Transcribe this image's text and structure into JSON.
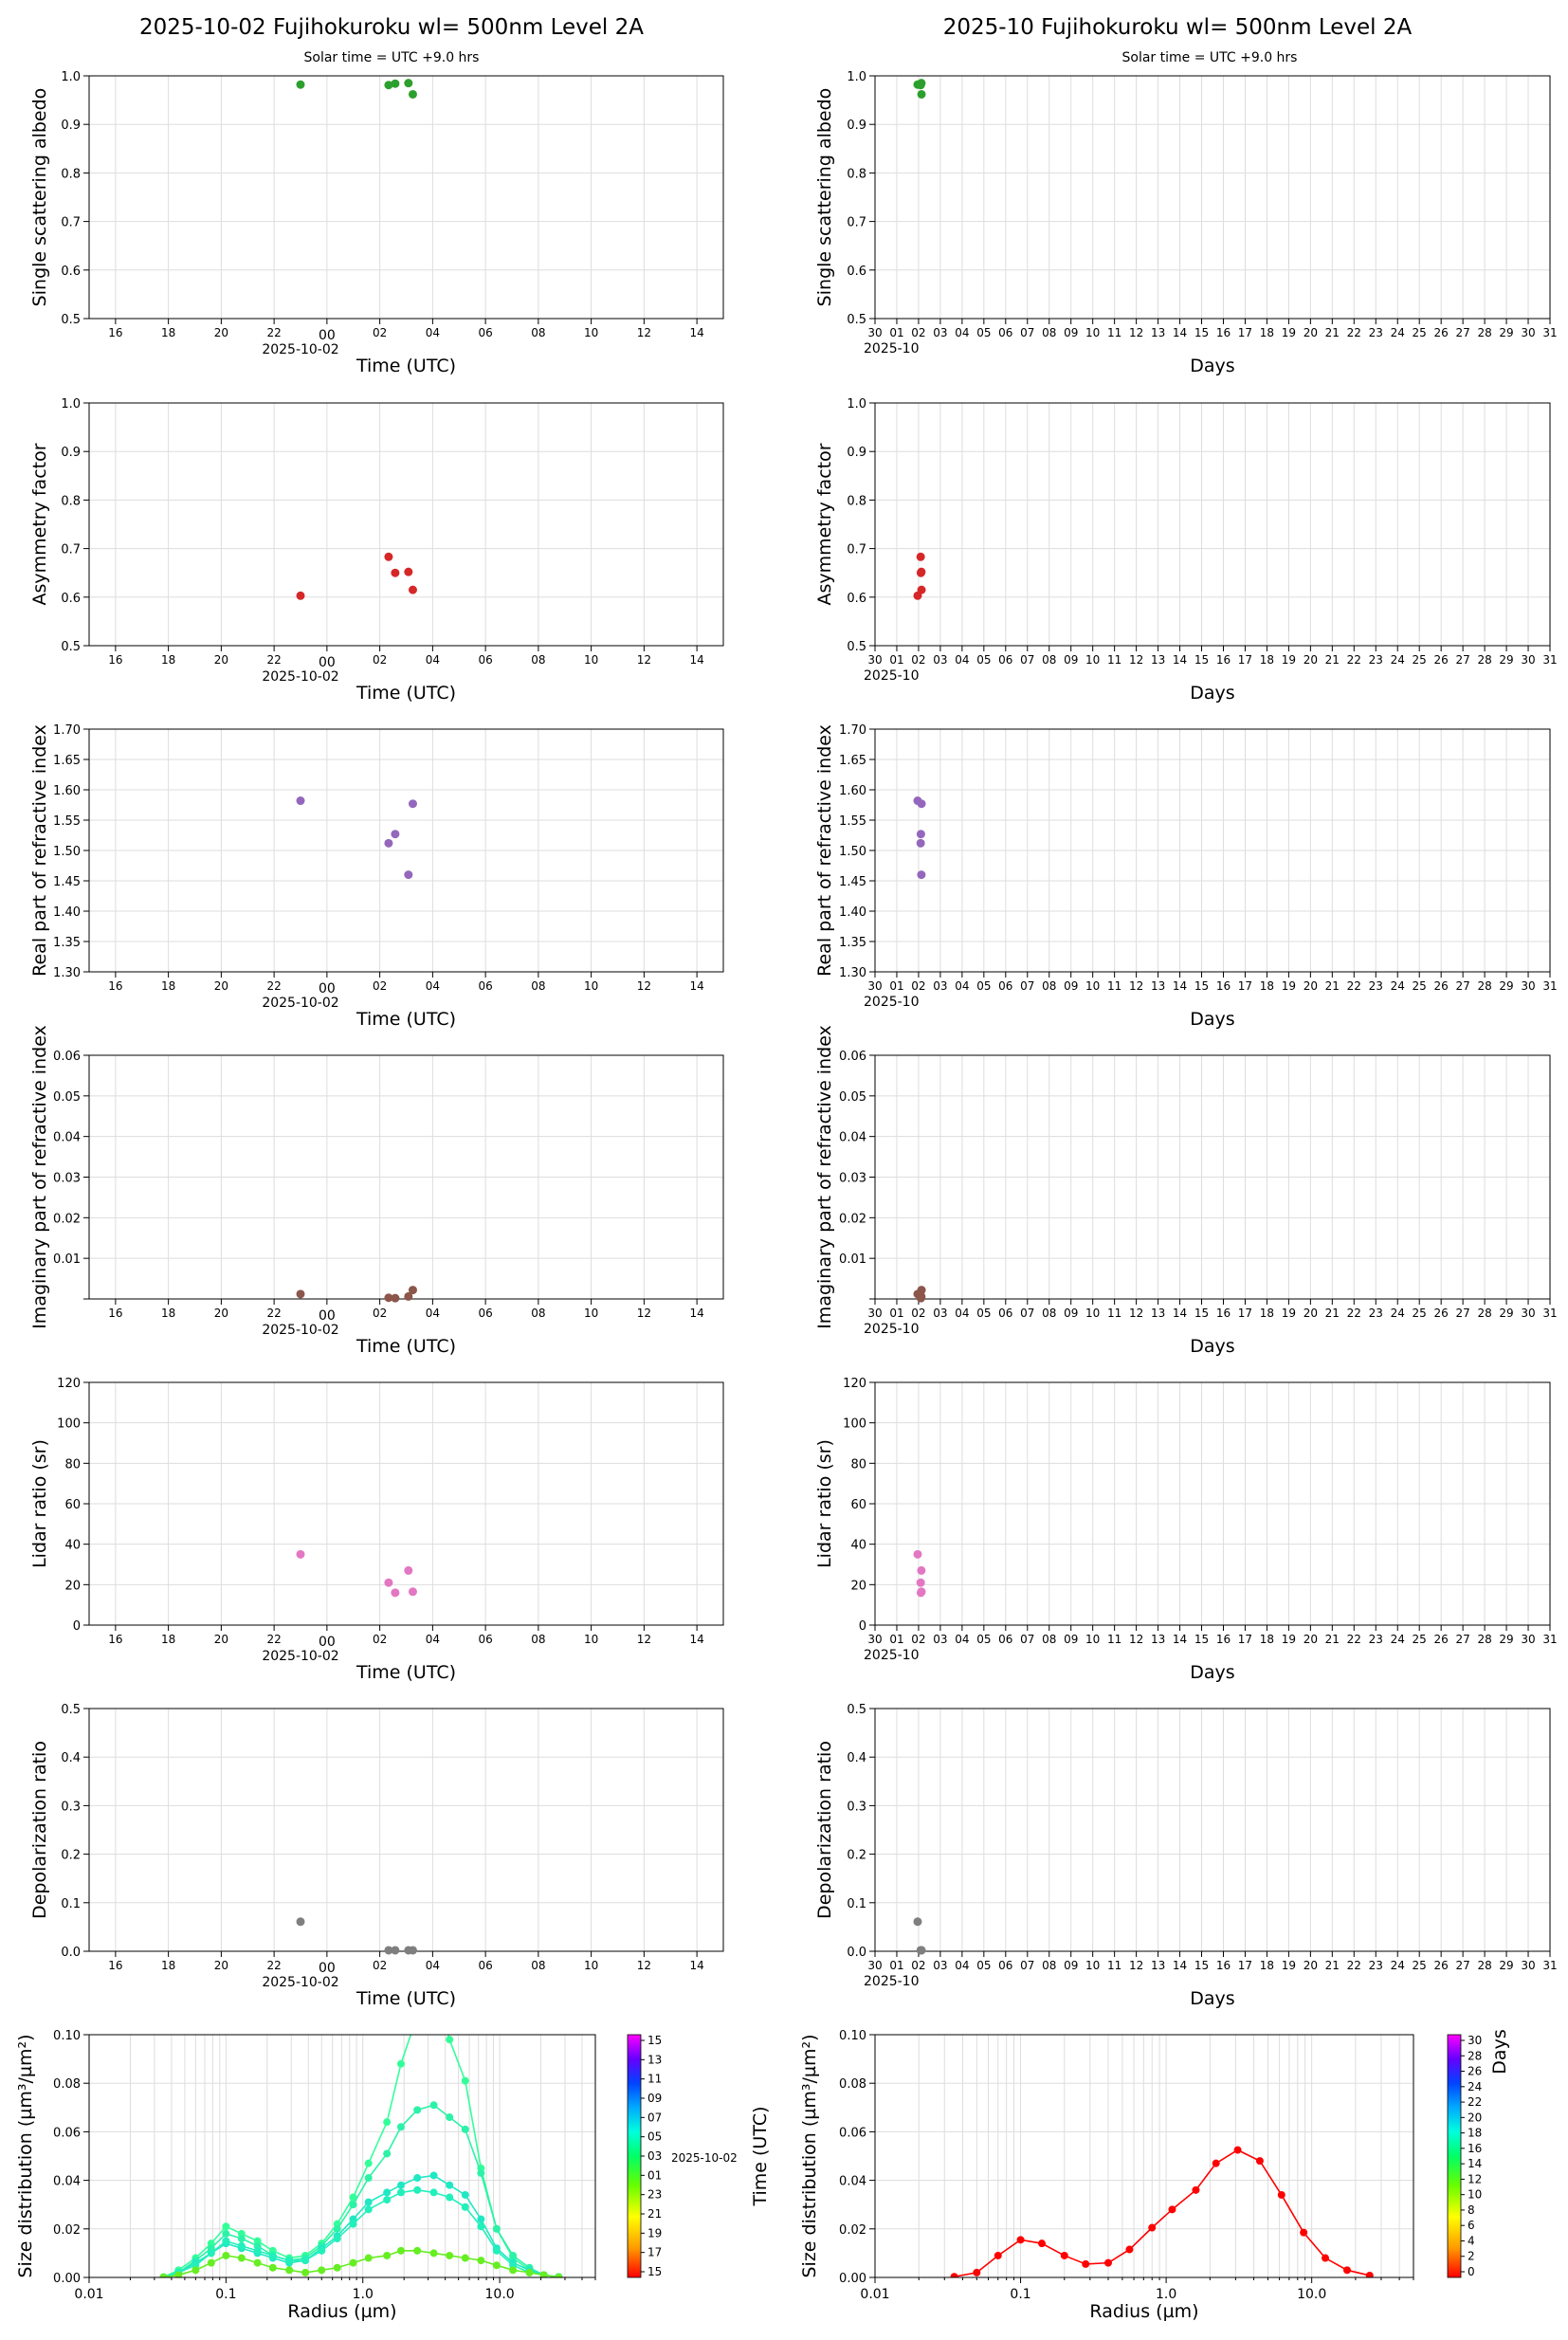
{
  "columns": [
    {
      "title": "2025-10-02  Fujihokuroku  wl= 500nm  Level 2A",
      "subtitle": "Solar time = UTC +9.0 hrs"
    },
    {
      "title": "2025-10  Fujihokuroku  wl= 500nm  Level 2A",
      "subtitle": "Solar time = UTC +9.0 hrs"
    }
  ],
  "axis_text": {
    "time_xlabel": "Time (UTC)",
    "days_xlabel": "Days",
    "time_date_label": "2025-10-02",
    "days_date_label": "2025-10",
    "time_ticks": [
      "16",
      "18",
      "20",
      "22",
      "00",
      "02",
      "04",
      "06",
      "08",
      "10",
      "12",
      "14"
    ],
    "day_ticks": [
      "30",
      "01",
      "02",
      "03",
      "04",
      "05",
      "06",
      "07",
      "08",
      "09",
      "10",
      "11",
      "12",
      "13",
      "14",
      "15",
      "16",
      "17",
      "18",
      "19",
      "20",
      "21",
      "22",
      "23",
      "24",
      "25",
      "26",
      "27",
      "28",
      "29",
      "30",
      "31"
    ],
    "radius_xlabel": "Radius (µm)",
    "radius_ticks": [
      "0.01",
      "0.1",
      "1.0",
      "10.0"
    ],
    "size_ylabel": "Size distribution (µm³/µm²)",
    "left_cbar_label": "Time (UTC)",
    "left_cbar_ticks": [
      "15",
      "13",
      "11",
      "09",
      "07",
      "05",
      "03",
      "01",
      "23",
      "21",
      "19",
      "17",
      "15"
    ],
    "left_cbar_date": "2025-10-02",
    "right_cbar_label": "Days",
    "right_cbar_ticks": [
      "30",
      "28",
      "26",
      "24",
      "22",
      "20",
      "18",
      "16",
      "14",
      "12",
      "10",
      "8",
      "6",
      "4",
      "2",
      "0"
    ]
  },
  "chart_data": [
    {
      "type": "scatter",
      "panel": "time",
      "ylabel": "Single scattering albedo",
      "ylim": [
        0.5,
        1.0
      ],
      "yticks": [
        "0.5",
        "0.6",
        "0.7",
        "0.8",
        "0.9",
        "1.0"
      ],
      "color": "#2ca02c",
      "grid": true,
      "points": [
        {
          "t": "2025-10-01T23:00",
          "y": 0.982
        },
        {
          "t": "2025-10-02T02:20",
          "y": 0.981
        },
        {
          "t": "2025-10-02T02:35",
          "y": 0.984
        },
        {
          "t": "2025-10-02T03:05",
          "y": 0.985
        },
        {
          "t": "2025-10-02T03:15",
          "y": 0.962
        }
      ]
    },
    {
      "type": "scatter",
      "panel": "days",
      "ylabel": "Single scattering albedo",
      "ylim": [
        0.5,
        1.0
      ],
      "yticks": [
        "0.5",
        "0.6",
        "0.7",
        "0.8",
        "0.9",
        "1.0"
      ],
      "color": "#2ca02c",
      "grid": true,
      "points": [
        {
          "d": "2025-10-01T23:00",
          "y": 0.982
        },
        {
          "d": "2025-10-02T02:20",
          "y": 0.981
        },
        {
          "d": "2025-10-02T02:35",
          "y": 0.984
        },
        {
          "d": "2025-10-02T03:05",
          "y": 0.985
        },
        {
          "d": "2025-10-02T03:15",
          "y": 0.962
        }
      ]
    },
    {
      "type": "scatter",
      "panel": "time",
      "ylabel": "Asymmetry factor",
      "ylim": [
        0.5,
        1.0
      ],
      "yticks": [
        "0.5",
        "0.6",
        "0.7",
        "0.8",
        "0.9",
        "1.0"
      ],
      "color": "#d62728",
      "grid": true,
      "points": [
        {
          "t": "2025-10-01T23:00",
          "y": 0.603
        },
        {
          "t": "2025-10-02T02:20",
          "y": 0.683
        },
        {
          "t": "2025-10-02T02:35",
          "y": 0.65
        },
        {
          "t": "2025-10-02T03:05",
          "y": 0.652
        },
        {
          "t": "2025-10-02T03:15",
          "y": 0.615
        }
      ]
    },
    {
      "type": "scatter",
      "panel": "days",
      "ylabel": "Asymmetry factor",
      "ylim": [
        0.5,
        1.0
      ],
      "yticks": [
        "0.5",
        "0.6",
        "0.7",
        "0.8",
        "0.9",
        "1.0"
      ],
      "color": "#d62728",
      "grid": true,
      "points": [
        {
          "d": "2025-10-01T23:00",
          "y": 0.603
        },
        {
          "d": "2025-10-02T02:20",
          "y": 0.683
        },
        {
          "d": "2025-10-02T02:35",
          "y": 0.65
        },
        {
          "d": "2025-10-02T03:05",
          "y": 0.652
        },
        {
          "d": "2025-10-02T03:15",
          "y": 0.615
        }
      ]
    },
    {
      "type": "scatter",
      "panel": "time",
      "ylabel": "Real part of refractive index",
      "ylim": [
        1.3,
        1.7
      ],
      "yticks": [
        "1.30",
        "1.35",
        "1.40",
        "1.45",
        "1.50",
        "1.55",
        "1.60",
        "1.65",
        "1.70"
      ],
      "color": "#9467bd",
      "grid": true,
      "points": [
        {
          "t": "2025-10-01T23:00",
          "y": 1.582
        },
        {
          "t": "2025-10-02T02:20",
          "y": 1.512
        },
        {
          "t": "2025-10-02T02:35",
          "y": 1.527
        },
        {
          "t": "2025-10-02T03:05",
          "y": 1.46
        },
        {
          "t": "2025-10-02T03:15",
          "y": 1.577
        }
      ]
    },
    {
      "type": "scatter",
      "panel": "days",
      "ylabel": "Real part of refractive index",
      "ylim": [
        1.3,
        1.7
      ],
      "yticks": [
        "1.30",
        "1.35",
        "1.40",
        "1.45",
        "1.50",
        "1.55",
        "1.60",
        "1.65",
        "1.70"
      ],
      "color": "#9467bd",
      "grid": true,
      "points": [
        {
          "d": "2025-10-01T23:00",
          "y": 1.582
        },
        {
          "d": "2025-10-02T02:20",
          "y": 1.512
        },
        {
          "d": "2025-10-02T02:35",
          "y": 1.527
        },
        {
          "d": "2025-10-02T03:05",
          "y": 1.46
        },
        {
          "d": "2025-10-02T03:15",
          "y": 1.577
        }
      ]
    },
    {
      "type": "scatter",
      "panel": "time",
      "ylabel": "Imaginary part of refractive index",
      "ylim": [
        0.0,
        0.06
      ],
      "yticks": [
        "",
        "0.01",
        "0.02",
        "0.03",
        "0.04",
        "0.05",
        "0.06"
      ],
      "color": "#8c564b",
      "grid": true,
      "points": [
        {
          "t": "2025-10-01T23:00",
          "y": 0.0012
        },
        {
          "t": "2025-10-02T02:20",
          "y": 0.0003
        },
        {
          "t": "2025-10-02T02:35",
          "y": 0.0002
        },
        {
          "t": "2025-10-02T03:05",
          "y": 0.0006
        },
        {
          "t": "2025-10-02T03:15",
          "y": 0.0022
        }
      ]
    },
    {
      "type": "scatter",
      "panel": "days",
      "ylabel": "Imaginary part of refractive index",
      "ylim": [
        0.0,
        0.06
      ],
      "yticks": [
        "",
        "0.01",
        "0.02",
        "0.03",
        "0.04",
        "0.05",
        "0.06"
      ],
      "color": "#8c564b",
      "grid": true,
      "points": [
        {
          "d": "2025-10-01T23:00",
          "y": 0.0012
        },
        {
          "d": "2025-10-02T02:20",
          "y": 0.0003
        },
        {
          "d": "2025-10-02T02:35",
          "y": 0.0002
        },
        {
          "d": "2025-10-02T03:05",
          "y": 0.0006
        },
        {
          "d": "2025-10-02T03:15",
          "y": 0.0022
        }
      ]
    },
    {
      "type": "scatter",
      "panel": "time",
      "ylabel": "Lidar ratio (sr)",
      "ylim": [
        0,
        120
      ],
      "yticks": [
        "0",
        "20",
        "40",
        "60",
        "80",
        "100",
        "120"
      ],
      "color": "#e377c2",
      "grid": true,
      "points": [
        {
          "t": "2025-10-01T23:00",
          "y": 35
        },
        {
          "t": "2025-10-02T02:20",
          "y": 21
        },
        {
          "t": "2025-10-02T02:35",
          "y": 16
        },
        {
          "t": "2025-10-02T03:05",
          "y": 27
        },
        {
          "t": "2025-10-02T03:15",
          "y": 16.5
        }
      ]
    },
    {
      "type": "scatter",
      "panel": "days",
      "ylabel": "Lidar ratio (sr)",
      "ylim": [
        0,
        120
      ],
      "yticks": [
        "0",
        "20",
        "40",
        "60",
        "80",
        "100",
        "120"
      ],
      "color": "#e377c2",
      "grid": true,
      "points": [
        {
          "d": "2025-10-01T23:00",
          "y": 35
        },
        {
          "d": "2025-10-02T02:20",
          "y": 21
        },
        {
          "d": "2025-10-02T02:35",
          "y": 16
        },
        {
          "d": "2025-10-02T03:05",
          "y": 27
        },
        {
          "d": "2025-10-02T03:15",
          "y": 16.5
        }
      ]
    },
    {
      "type": "scatter",
      "panel": "time",
      "ylabel": "Depolarization ratio",
      "ylim": [
        0.0,
        0.5
      ],
      "yticks": [
        "0.0",
        "0.1",
        "0.2",
        "0.3",
        "0.4",
        "0.5"
      ],
      "color": "#7f7f7f",
      "grid": true,
      "points": [
        {
          "t": "2025-10-01T23:00",
          "y": 0.061
        },
        {
          "t": "2025-10-02T02:20",
          "y": 0.002
        },
        {
          "t": "2025-10-02T02:35",
          "y": 0.002
        },
        {
          "t": "2025-10-02T03:05",
          "y": 0.002
        },
        {
          "t": "2025-10-02T03:15",
          "y": 0.002
        }
      ]
    },
    {
      "type": "scatter",
      "panel": "days",
      "ylabel": "Depolarization ratio",
      "ylim": [
        0.0,
        0.5
      ],
      "yticks": [
        "0.0",
        "0.1",
        "0.2",
        "0.3",
        "0.4",
        "0.5"
      ],
      "color": "#7f7f7f",
      "grid": true,
      "points": [
        {
          "d": "2025-10-01T23:00",
          "y": 0.061
        },
        {
          "d": "2025-10-02T02:20",
          "y": 0.002
        },
        {
          "d": "2025-10-02T02:35",
          "y": 0.002
        },
        {
          "d": "2025-10-02T03:05",
          "y": 0.002
        },
        {
          "d": "2025-10-02T03:15",
          "y": 0.002
        }
      ]
    },
    {
      "type": "line",
      "panel": "size_time",
      "xscale": "log",
      "xlim": [
        0.01,
        50
      ],
      "ylim": [
        0.0,
        0.1
      ],
      "yticks": [
        "0.00",
        "0.02",
        "0.04",
        "0.06",
        "0.08",
        "0.10"
      ],
      "grid": true,
      "x": [
        0.035,
        0.045,
        0.06,
        0.078,
        0.1,
        0.13,
        0.17,
        0.22,
        0.29,
        0.38,
        0.5,
        0.65,
        0.85,
        1.1,
        1.5,
        1.9,
        2.5,
        3.3,
        4.3,
        5.6,
        7.3,
        9.5,
        12.5,
        16.5,
        21,
        27
      ],
      "series": [
        {
          "color": "#33ff99",
          "values": [
            0.0001,
            0.003,
            0.008,
            0.014,
            0.021,
            0.018,
            0.015,
            0.011,
            0.008,
            0.009,
            0.014,
            0.022,
            0.033,
            0.047,
            0.064,
            0.088,
            0.108,
            0.124,
            0.098,
            0.081,
            0.045,
            0.02,
            0.008,
            0.003,
            0.001,
            0.0002
          ]
        },
        {
          "color": "#2cf2a8",
          "values": [
            0.0001,
            0.002,
            0.007,
            0.012,
            0.018,
            0.016,
            0.013,
            0.009,
            0.007,
            0.008,
            0.013,
            0.02,
            0.03,
            0.041,
            0.051,
            0.062,
            0.069,
            0.071,
            0.066,
            0.061,
            0.043,
            0.02,
            0.009,
            0.004,
            0.001,
            0.0002
          ]
        },
        {
          "color": "#20e8c4",
          "values": [
            0.0001,
            0.002,
            0.006,
            0.01,
            0.014,
            0.012,
            0.01,
            0.008,
            0.006,
            0.007,
            0.012,
            0.017,
            0.024,
            0.031,
            0.035,
            0.038,
            0.041,
            0.042,
            0.038,
            0.034,
            0.024,
            0.012,
            0.006,
            0.003,
            0.001,
            0.0002
          ]
        },
        {
          "color": "#22f0bb",
          "values": [
            0.0001,
            0.002,
            0.005,
            0.01,
            0.015,
            0.013,
            0.011,
            0.009,
            0.007,
            0.007,
            0.011,
            0.016,
            0.022,
            0.028,
            0.032,
            0.035,
            0.036,
            0.035,
            0.033,
            0.029,
            0.021,
            0.011,
            0.005,
            0.002,
            0.001,
            0.0001
          ]
        },
        {
          "color": "#66ee22",
          "values": [
            0.0001,
            0.001,
            0.003,
            0.006,
            0.009,
            0.008,
            0.006,
            0.004,
            0.003,
            0.002,
            0.003,
            0.004,
            0.006,
            0.008,
            0.009,
            0.011,
            0.011,
            0.01,
            0.009,
            0.008,
            0.007,
            0.005,
            0.003,
            0.002,
            0.001,
            0.0001
          ]
        }
      ]
    },
    {
      "type": "line",
      "panel": "size_days",
      "xscale": "log",
      "xlim": [
        0.01,
        50
      ],
      "ylim": [
        0.0,
        0.1
      ],
      "yticks": [
        "0.00",
        "0.02",
        "0.04",
        "0.06",
        "0.08",
        "0.10"
      ],
      "grid": true,
      "color": "#ff0000",
      "x": [
        0.035,
        0.05,
        0.07,
        0.1,
        0.14,
        0.2,
        0.28,
        0.4,
        0.56,
        0.8,
        1.1,
        1.6,
        2.2,
        3.1,
        4.4,
        6.2,
        8.8,
        12.4,
        17.5,
        25
      ],
      "values": [
        0.0003,
        0.002,
        0.009,
        0.0155,
        0.014,
        0.009,
        0.0055,
        0.006,
        0.0115,
        0.0205,
        0.028,
        0.036,
        0.047,
        0.0525,
        0.048,
        0.034,
        0.0185,
        0.008,
        0.003,
        0.0008
      ]
    }
  ]
}
